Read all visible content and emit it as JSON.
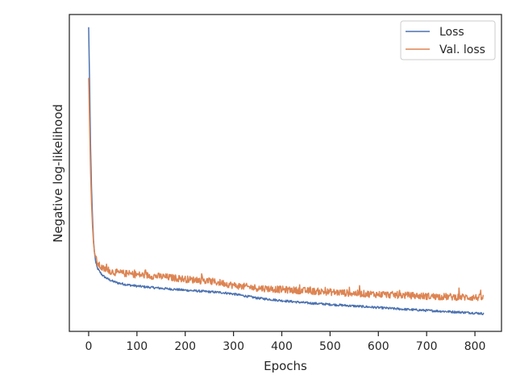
{
  "chart_data": {
    "type": "line",
    "title": "",
    "xlabel": "Epochs",
    "ylabel": "Negative log-likelihood",
    "xlim": [
      -40,
      855
    ],
    "ylim": [
      0,
      1
    ],
    "x_ticks": [
      "0",
      "100",
      "200",
      "300",
      "400",
      "500",
      "600",
      "700",
      "800"
    ],
    "y_ticks_labeled": false,
    "grid": false,
    "legend": "top-right",
    "series": [
      {
        "name": "Loss",
        "color": "#4c72b0",
        "noise": 0.0035,
        "x": [
          0,
          2,
          4,
          6,
          8,
          10,
          12,
          15,
          18,
          22,
          26,
          30,
          35,
          40,
          50,
          60,
          70,
          80,
          100,
          120,
          150,
          200,
          250,
          280,
          300,
          350,
          400,
          450,
          500,
          550,
          600,
          650,
          700,
          750,
          800,
          818
        ],
        "y": [
          0.96,
          0.78,
          0.58,
          0.45,
          0.36,
          0.29,
          0.25,
          0.215,
          0.2,
          0.19,
          0.182,
          0.175,
          0.17,
          0.165,
          0.158,
          0.153,
          0.15,
          0.147,
          0.143,
          0.14,
          0.136,
          0.13,
          0.125,
          0.122,
          0.118,
          0.105,
          0.097,
          0.09,
          0.085,
          0.08,
          0.075,
          0.07,
          0.066,
          0.062,
          0.058,
          0.056
        ]
      },
      {
        "name": "Val. loss",
        "color": "#dd8452",
        "noise": 0.011,
        "x": [
          0,
          2,
          4,
          6,
          8,
          10,
          12,
          15,
          18,
          22,
          26,
          30,
          40,
          50,
          60,
          80,
          100,
          150,
          200,
          250,
          280,
          300,
          350,
          400,
          450,
          500,
          550,
          600,
          650,
          700,
          750,
          800,
          818
        ],
        "y": [
          0.8,
          0.65,
          0.5,
          0.4,
          0.33,
          0.28,
          0.25,
          0.23,
          0.215,
          0.208,
          0.202,
          0.198,
          0.192,
          0.188,
          0.185,
          0.182,
          0.179,
          0.173,
          0.165,
          0.158,
          0.152,
          0.145,
          0.137,
          0.132,
          0.128,
          0.124,
          0.12,
          0.117,
          0.114,
          0.111,
          0.109,
          0.107,
          0.106
        ]
      }
    ]
  }
}
